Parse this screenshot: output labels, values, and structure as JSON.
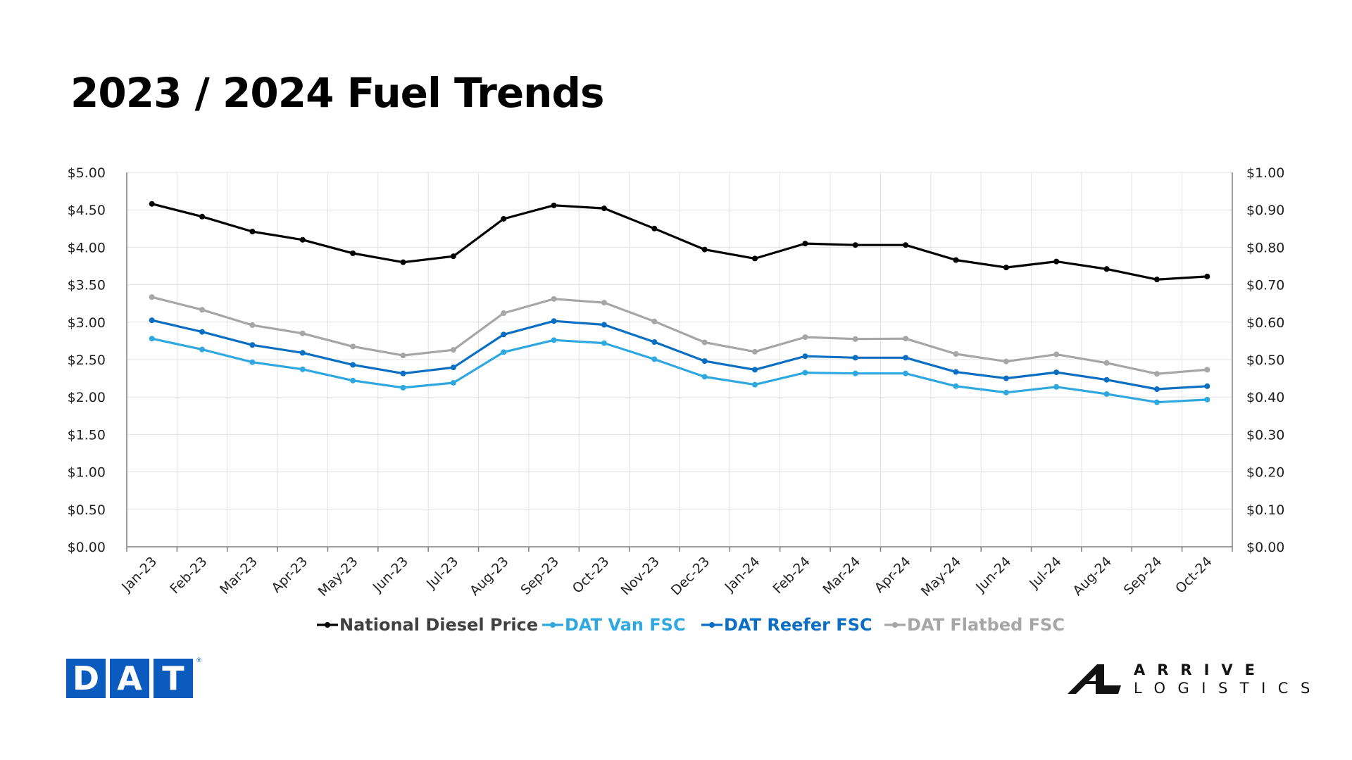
{
  "title": "2023 / 2024 Fuel Trends",
  "chart_data": {
    "type": "line",
    "categories": [
      "Jan-23",
      "Feb-23",
      "Mar-23",
      "Apr-23",
      "May-23",
      "Jun-23",
      "Jul-23",
      "Aug-23",
      "Sep-23",
      "Oct-23",
      "Nov-23",
      "Dec-23",
      "Jan-24",
      "Feb-24",
      "Mar-24",
      "Apr-24",
      "May-24",
      "Jun-24",
      "Jul-24",
      "Aug-24",
      "Sep-24",
      "Oct-24"
    ],
    "y_left": {
      "min": 0,
      "max": 5,
      "step": 0.5,
      "labels": [
        "$0.00",
        "$0.50",
        "$1.00",
        "$1.50",
        "$2.00",
        "$2.50",
        "$3.00",
        "$3.50",
        "$4.00",
        "$4.50",
        "$5.00"
      ]
    },
    "y_right": {
      "min": 0,
      "max": 1,
      "step": 0.1,
      "labels": [
        "$0.00",
        "$0.10",
        "$0.20",
        "$0.30",
        "$0.40",
        "$0.50",
        "$0.60",
        "$0.70",
        "$0.80",
        "$0.90",
        "$1.00"
      ]
    },
    "grid": true,
    "legend_position": "bottom",
    "series": [
      {
        "name": "National Diesel Price",
        "axis": "left",
        "color": "#000000",
        "values": [
          4.58,
          4.41,
          4.21,
          4.1,
          3.92,
          3.8,
          3.88,
          4.38,
          4.56,
          4.52,
          4.25,
          3.97,
          3.85,
          4.05,
          4.03,
          4.03,
          3.83,
          3.73,
          3.81,
          3.71,
          3.57,
          3.61
        ]
      },
      {
        "name": "DAT Van FSC",
        "axis": "right",
        "color": "#2fa8e0",
        "values": [
          0.556,
          0.527,
          0.493,
          0.474,
          0.444,
          0.425,
          0.438,
          0.52,
          0.552,
          0.544,
          0.501,
          0.454,
          0.433,
          0.465,
          0.463,
          0.463,
          0.429,
          0.412,
          0.427,
          0.408,
          0.386,
          0.393
        ]
      },
      {
        "name": "DAT Reefer FSC",
        "axis": "right",
        "color": "#0a6fc2",
        "values": [
          0.605,
          0.574,
          0.539,
          0.518,
          0.486,
          0.463,
          0.479,
          0.567,
          0.603,
          0.593,
          0.547,
          0.496,
          0.473,
          0.509,
          0.505,
          0.505,
          0.467,
          0.45,
          0.466,
          0.446,
          0.421,
          0.429
        ]
      },
      {
        "name": "DAT Flatbed FSC",
        "axis": "right",
        "color": "#a6a6a6",
        "values": [
          0.667,
          0.633,
          0.592,
          0.57,
          0.535,
          0.511,
          0.526,
          0.624,
          0.662,
          0.652,
          0.602,
          0.546,
          0.521,
          0.56,
          0.555,
          0.556,
          0.515,
          0.495,
          0.514,
          0.491,
          0.462,
          0.473
        ]
      }
    ]
  },
  "logos": {
    "dat": {
      "letters": [
        "D",
        "A",
        "T"
      ],
      "reg": "®",
      "color": "#0a5bbd"
    },
    "arrive": {
      "line1": "ARRIVE",
      "line2": "LOGISTICS"
    }
  }
}
